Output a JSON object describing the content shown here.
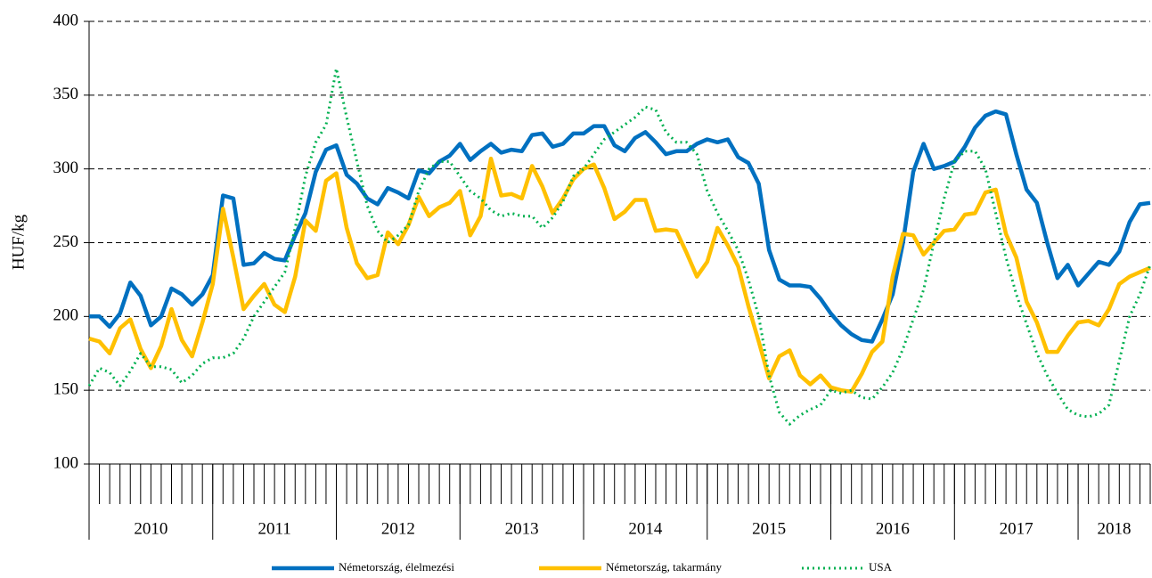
{
  "chart_data": {
    "type": "line",
    "y_label": "HUF/kg",
    "years": [
      "2010",
      "2011",
      "2012",
      "2013",
      "2014",
      "2015",
      "2016",
      "2017",
      "2018"
    ],
    "ylim": [
      100,
      400
    ],
    "yticks": [
      100,
      150,
      200,
      250,
      300,
      350,
      400
    ],
    "grid": true,
    "legend": "bottom",
    "series": [
      {
        "name": "Németország, élelmezési",
        "color": "#0070c0",
        "style": "solid",
        "values": [
          200,
          200,
          193,
          202,
          223,
          214,
          194,
          200,
          219,
          215,
          208,
          215,
          228,
          282,
          280,
          235,
          236,
          243,
          239,
          238,
          255,
          270,
          298,
          313,
          316,
          296,
          290,
          280,
          276,
          287,
          284,
          280,
          299,
          297,
          305,
          309,
          317,
          306,
          312,
          317,
          311,
          313,
          312,
          323,
          324,
          315,
          317,
          324,
          324,
          329,
          329,
          316,
          312,
          321,
          325,
          318,
          310,
          312,
          312,
          317,
          320,
          318,
          320,
          308,
          304,
          290,
          245,
          225,
          221,
          221,
          220,
          212,
          202,
          194,
          188,
          184,
          183,
          198,
          215,
          250,
          298,
          317,
          300,
          302,
          305,
          315,
          328,
          336,
          339,
          337,
          310,
          286,
          277,
          250,
          226,
          235,
          221,
          229,
          237,
          235,
          244,
          264,
          276,
          277
        ]
      },
      {
        "name": "Németország, takarmány",
        "color": "#ffc000",
        "style": "solid",
        "values": [
          185,
          183,
          175,
          192,
          198,
          178,
          165,
          180,
          205,
          184,
          173,
          196,
          222,
          273,
          240,
          205,
          214,
          222,
          208,
          203,
          227,
          265,
          258,
          292,
          297,
          260,
          236,
          226,
          228,
          257,
          249,
          262,
          281,
          268,
          274,
          277,
          285,
          255,
          268,
          307,
          282,
          283,
          280,
          302,
          288,
          270,
          280,
          293,
          300,
          303,
          287,
          266,
          271,
          279,
          279,
          258,
          259,
          258,
          243,
          227,
          237,
          260,
          248,
          234,
          207,
          183,
          158,
          173,
          177,
          160,
          154,
          160,
          152,
          150,
          149,
          161,
          176,
          183,
          227,
          256,
          255,
          242,
          250,
          258,
          259,
          269,
          270,
          284,
          286,
          256,
          240,
          210,
          196,
          176,
          176,
          187,
          196,
          197,
          194,
          205,
          222,
          227,
          230,
          233
        ]
      },
      {
        "name": "USA",
        "color": "#00b050",
        "style": "dotted",
        "values": [
          153,
          165,
          162,
          153,
          163,
          175,
          166,
          166,
          164,
          155,
          160,
          168,
          172,
          172,
          175,
          185,
          200,
          210,
          220,
          230,
          260,
          295,
          318,
          330,
          368,
          335,
          305,
          275,
          258,
          250,
          255,
          262,
          285,
          300,
          305,
          305,
          295,
          285,
          280,
          272,
          268,
          270,
          268,
          268,
          260,
          267,
          278,
          295,
          300,
          310,
          320,
          325,
          330,
          335,
          342,
          340,
          325,
          318,
          318,
          310,
          285,
          270,
          258,
          245,
          225,
          200,
          160,
          135,
          127,
          133,
          137,
          140,
          150,
          148,
          150,
          145,
          144,
          152,
          162,
          178,
          198,
          218,
          250,
          280,
          305,
          312,
          312,
          300,
          270,
          240,
          215,
          195,
          175,
          160,
          148,
          137,
          133,
          132,
          134,
          140,
          170,
          200,
          215,
          235
        ]
      }
    ]
  }
}
